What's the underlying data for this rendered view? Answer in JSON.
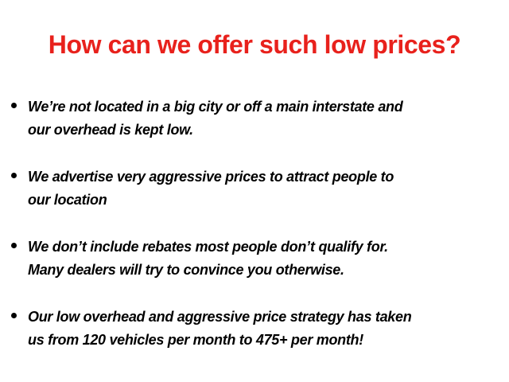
{
  "title": "How can we offer such low prices?",
  "bullets": [
    {
      "lines": [
        "We’re not located in a big city or off a main interstate and",
        "our overhead is kept low."
      ]
    },
    {
      "lines": [
        "We advertise very aggressive prices to attract people to",
        "our location"
      ]
    },
    {
      "lines": [
        "We don’t include rebates most people don’t qualify for.",
        "Many dealers will try to convince you otherwise."
      ]
    },
    {
      "lines": [
        "Our low overhead and aggressive price strategy has taken",
        "us from 120 vehicles per month to 475+ per month!"
      ]
    }
  ],
  "colors": {
    "title": "#e8211c",
    "text": "#000000"
  }
}
